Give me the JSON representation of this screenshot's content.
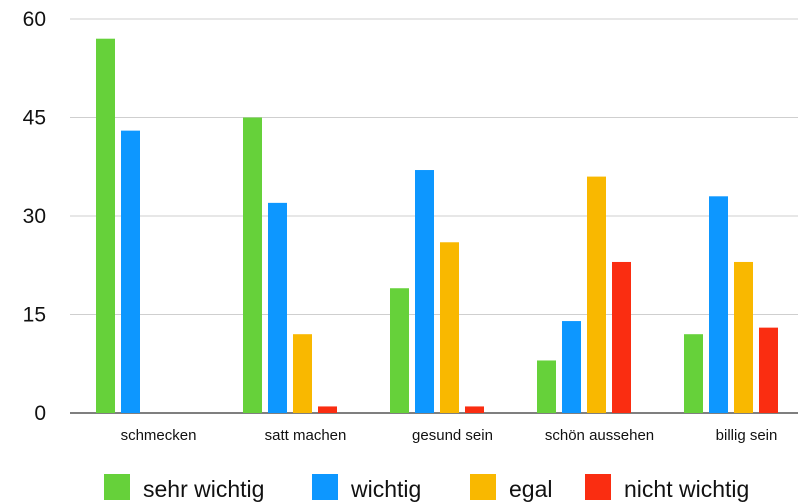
{
  "chart_data": {
    "type": "bar",
    "title": "",
    "xlabel": "",
    "ylabel": "",
    "categories": [
      "schmecken",
      "satt machen",
      "gesund sein",
      "schön aussehen",
      "billig sein"
    ],
    "series": [
      {
        "name": "sehr wichtig",
        "color": "#66d13a",
        "values": [
          57,
          45,
          19,
          8,
          12
        ]
      },
      {
        "name": "wichtig",
        "color": "#0d97ff",
        "values": [
          43,
          32,
          37,
          14,
          33
        ]
      },
      {
        "name": "egal",
        "color": "#f9b800",
        "values": [
          null,
          12,
          26,
          36,
          23
        ]
      },
      {
        "name": "nicht wichtig",
        "color": "#fa2d11",
        "values": [
          null,
          1,
          1,
          23,
          13
        ]
      }
    ],
    "ylim": [
      0,
      60
    ],
    "yticks": [
      "0",
      "15",
      "30",
      "45",
      "60"
    ],
    "grid": true,
    "legend_position": "bottom"
  }
}
